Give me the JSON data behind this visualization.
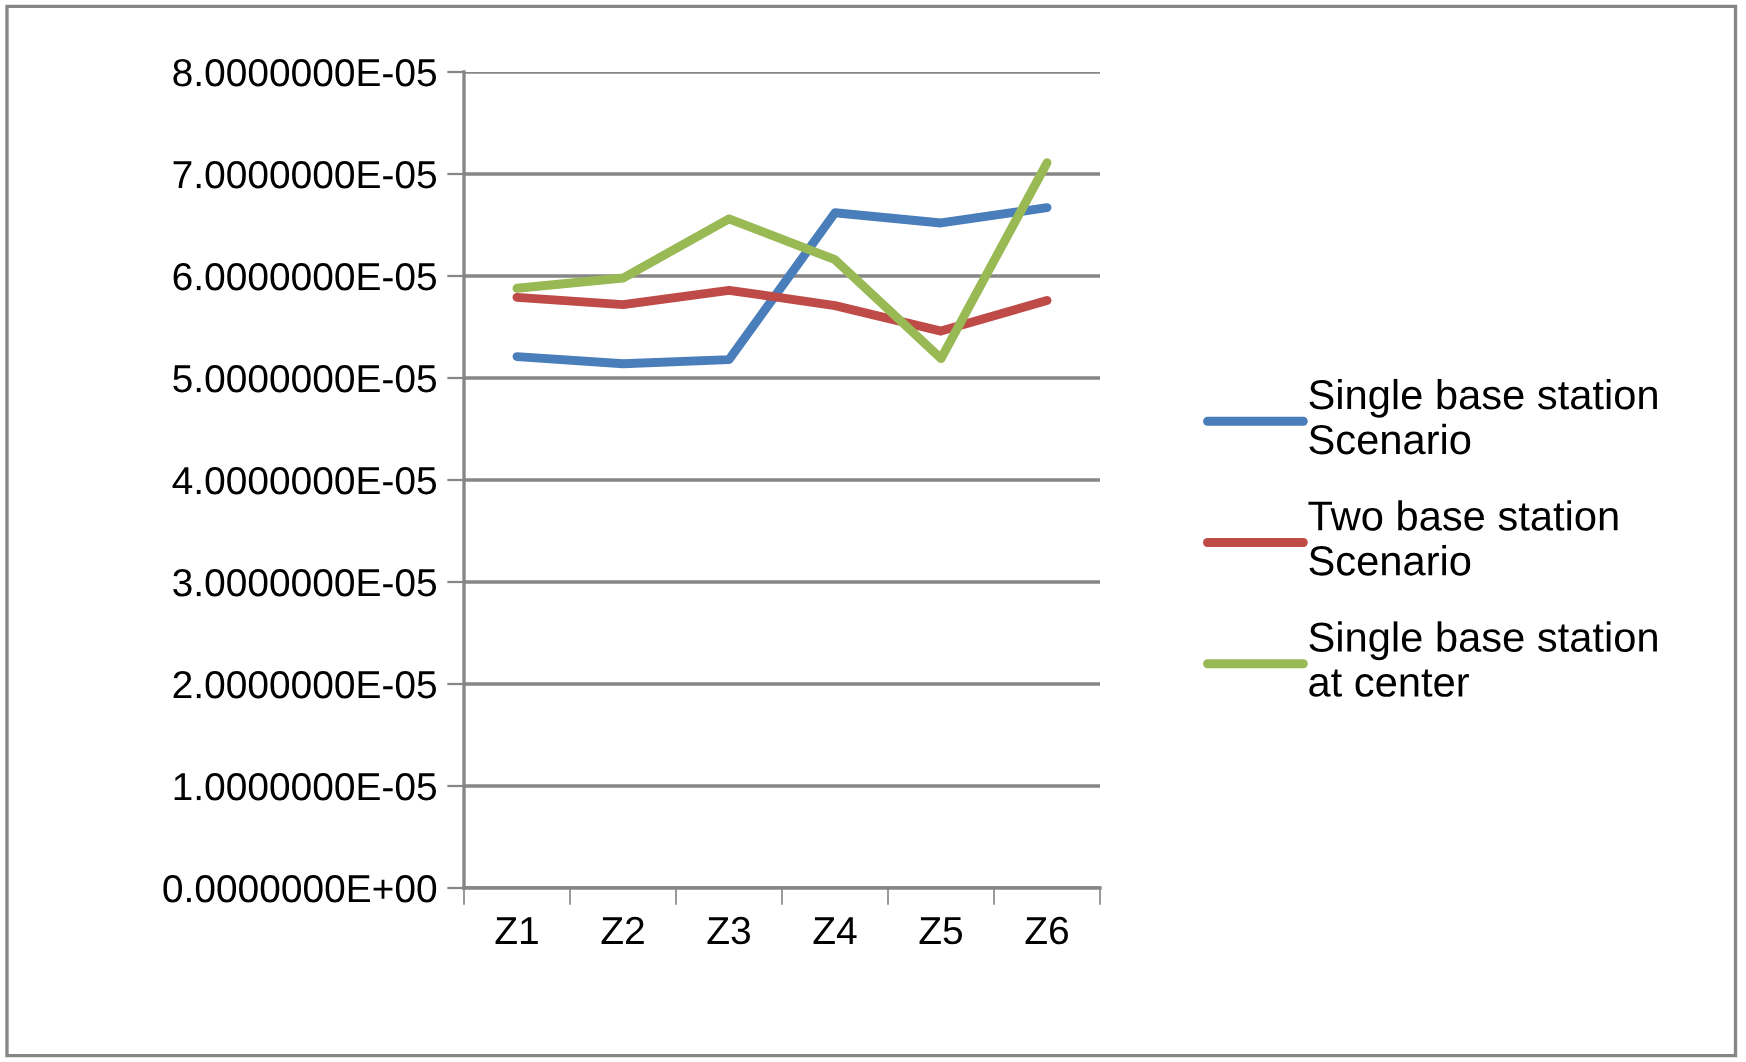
{
  "chart_data": {
    "type": "line",
    "categories": [
      "Z1",
      "Z2",
      "Z3",
      "Z4",
      "Z5",
      "Z6"
    ],
    "series": [
      {
        "name": "Single base station\nScenario",
        "color": "#4a7ebb",
        "values": [
          5.21e-05,
          5.14e-05,
          5.18e-05,
          6.62e-05,
          6.52e-05,
          6.67e-05
        ]
      },
      {
        "name": "Two base station\nScenario",
        "color": "#be4b48",
        "values": [
          5.79e-05,
          5.72e-05,
          5.86e-05,
          5.71e-05,
          5.46e-05,
          5.76e-05
        ]
      },
      {
        "name": "Single base station\nat center",
        "color": "#98b954",
        "values": [
          5.88e-05,
          5.98e-05,
          6.56e-05,
          6.16e-05,
          5.19e-05,
          7.11e-05
        ]
      }
    ],
    "ylim": [
      0,
      8e-05
    ],
    "yticks": [
      {
        "value": 0,
        "label": "0.0000000E+00"
      },
      {
        "value": 1e-05,
        "label": "1.0000000E-05"
      },
      {
        "value": 2e-05,
        "label": "2.0000000E-05"
      },
      {
        "value": 3e-05,
        "label": "3.0000000E-05"
      },
      {
        "value": 4e-05,
        "label": "4.0000000E-05"
      },
      {
        "value": 5e-05,
        "label": "5.0000000E-05"
      },
      {
        "value": 6e-05,
        "label": "6.0000000E-05"
      },
      {
        "value": 7e-05,
        "label": "7.0000000E-05"
      },
      {
        "value": 8e-05,
        "label": "8.0000000E-05"
      }
    ],
    "grid": "y",
    "legend": "right",
    "marker": "none",
    "line_style": "solid"
  }
}
